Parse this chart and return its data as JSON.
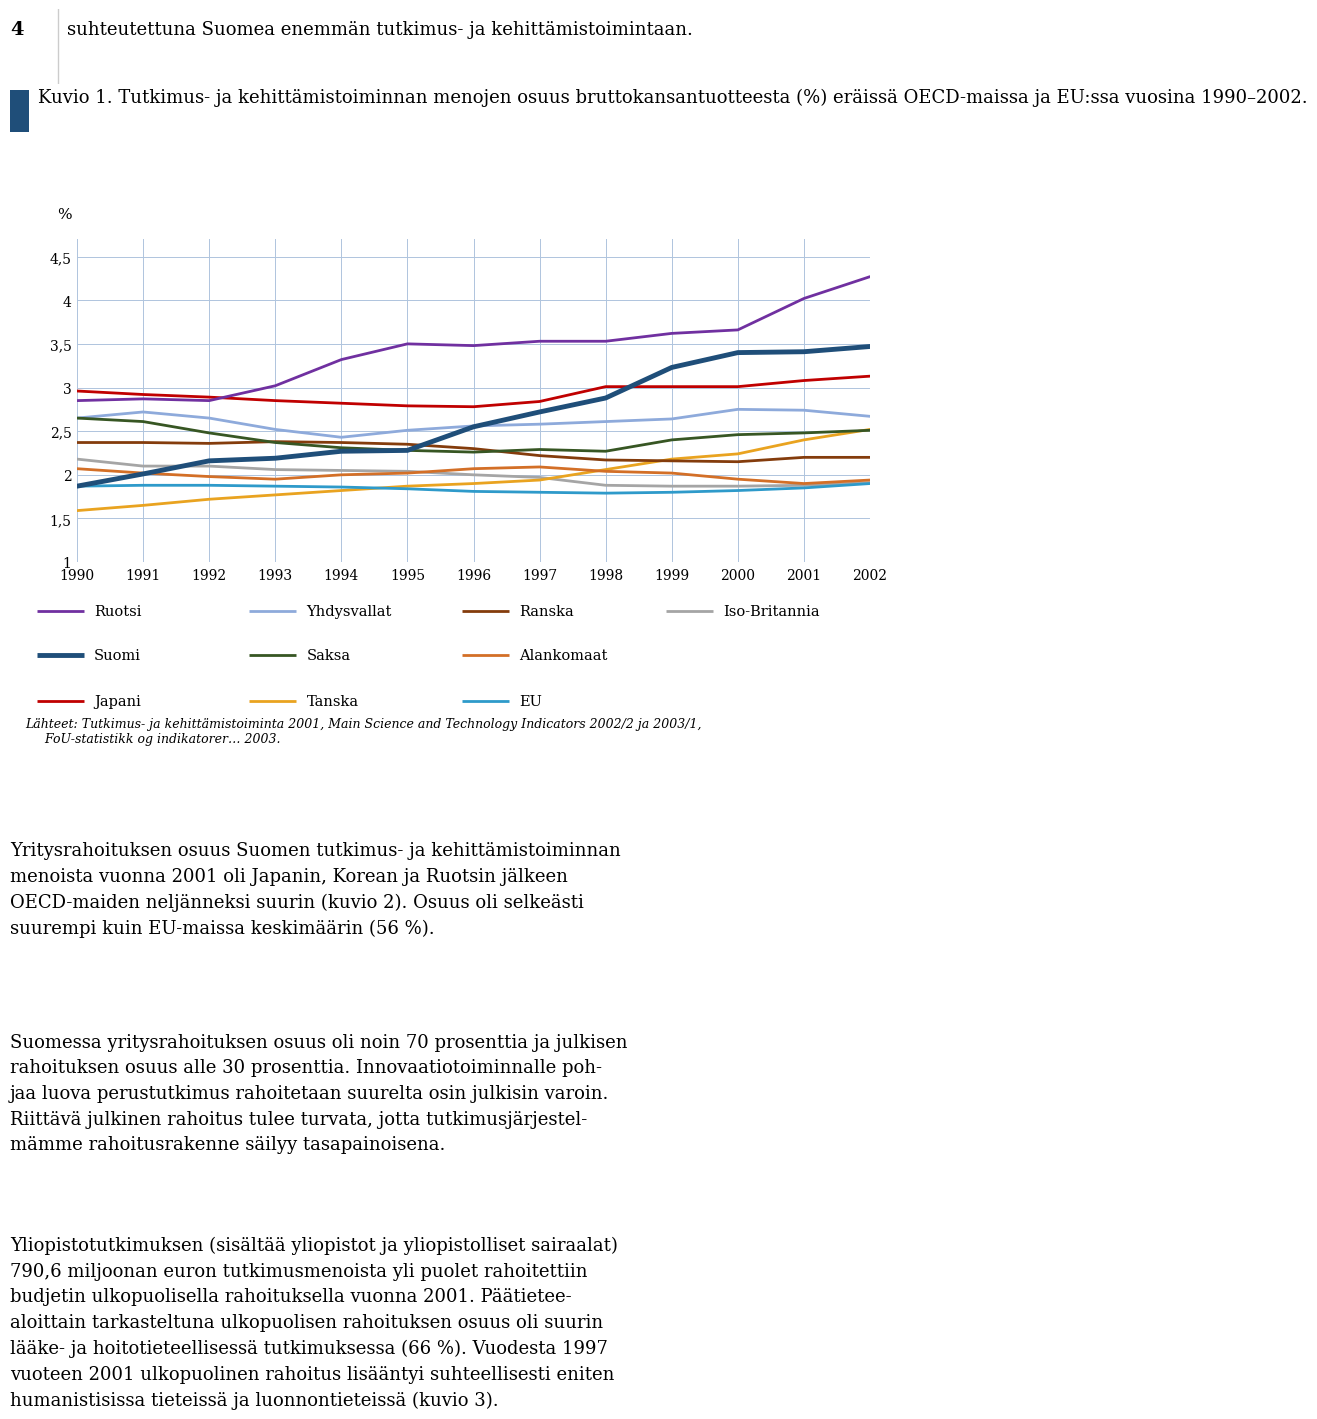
{
  "title_text": "Kuvio 1. Tutkimus- ja kehittämistoiminnan menojen osuus bruttokansantuotteesta (%) eräissä OECD-maissa ja EU:ssa vuosina 1990–2002.",
  "intro_text": "suhteutettuna Suomea enemmän tutkimus- ja kehittämistoimintaan.",
  "page_number": "4",
  "ylabel": "%",
  "ylim": [
    1.0,
    4.7
  ],
  "yticks": [
    1.0,
    1.5,
    2.0,
    2.5,
    3.0,
    3.5,
    4.0,
    4.5
  ],
  "xlim": [
    1990,
    2002
  ],
  "xticks": [
    1990,
    1991,
    1992,
    1993,
    1994,
    1995,
    1996,
    1997,
    1998,
    1999,
    2000,
    2001,
    2002
  ],
  "bg_color": "#d9e2f0",
  "plot_bg_color": "#ffffff",
  "grid_color": "#afc4dd",
  "years": [
    1990,
    1991,
    1992,
    1993,
    1994,
    1995,
    1996,
    1997,
    1998,
    1999,
    2000,
    2001,
    2002
  ],
  "series": {
    "Ruotsi": {
      "color": "#7030a0",
      "lw": 2.0,
      "data": [
        2.85,
        2.87,
        2.85,
        3.02,
        3.32,
        3.5,
        3.48,
        3.53,
        3.53,
        3.62,
        3.66,
        4.02,
        4.27
      ]
    },
    "Suomi": {
      "color": "#1f4e79",
      "lw": 3.5,
      "data": [
        1.87,
        2.01,
        2.16,
        2.19,
        2.27,
        2.28,
        2.55,
        2.72,
        2.88,
        3.23,
        3.4,
        3.41,
        3.47
      ]
    },
    "Japani": {
      "color": "#c00000",
      "lw": 2.0,
      "data": [
        2.96,
        2.92,
        2.89,
        2.85,
        2.82,
        2.79,
        2.78,
        2.84,
        3.01,
        3.01,
        3.01,
        3.08,
        3.13
      ]
    },
    "Yhdysvallat": {
      "color": "#8eaadb",
      "lw": 2.0,
      "data": [
        2.65,
        2.72,
        2.65,
        2.52,
        2.43,
        2.51,
        2.56,
        2.58,
        2.61,
        2.64,
        2.75,
        2.74,
        2.67
      ]
    },
    "Saksa": {
      "color": "#375623",
      "lw": 2.0,
      "data": [
        2.65,
        2.61,
        2.48,
        2.37,
        2.31,
        2.28,
        2.26,
        2.29,
        2.27,
        2.4,
        2.46,
        2.48,
        2.51
      ]
    },
    "Tanska": {
      "color": "#e9a320",
      "lw": 2.0,
      "data": [
        1.59,
        1.65,
        1.72,
        1.77,
        1.82,
        1.87,
        1.9,
        1.94,
        2.06,
        2.18,
        2.24,
        2.4,
        2.52
      ]
    },
    "Ranska": {
      "color": "#843c0c",
      "lw": 2.0,
      "data": [
        2.37,
        2.37,
        2.36,
        2.38,
        2.37,
        2.35,
        2.3,
        2.22,
        2.17,
        2.16,
        2.15,
        2.2,
        2.2
      ]
    },
    "Alankomaat": {
      "color": "#d36f27",
      "lw": 2.0,
      "data": [
        2.07,
        2.02,
        1.98,
        1.95,
        2.0,
        2.02,
        2.07,
        2.09,
        2.04,
        2.02,
        1.95,
        1.9,
        1.94
      ]
    },
    "EU": {
      "color": "#2e9aca",
      "lw": 2.0,
      "data": [
        1.87,
        1.88,
        1.88,
        1.87,
        1.86,
        1.84,
        1.81,
        1.8,
        1.79,
        1.8,
        1.82,
        1.85,
        1.9
      ]
    },
    "Iso-Britannia": {
      "color": "#a5a5a5",
      "lw": 2.0,
      "data": [
        2.18,
        2.1,
        2.1,
        2.06,
        2.05,
        2.04,
        2.0,
        1.97,
        1.88,
        1.87,
        1.87,
        1.88,
        1.91
      ]
    }
  },
  "legend_layout": [
    [
      "Ruotsi",
      "Yhdysvallat",
      "Ranska",
      "Iso-Britannia"
    ],
    [
      "Suomi",
      "Saksa",
      "Alankomaat",
      ""
    ],
    [
      "Japani",
      "Tanska",
      "EU",
      ""
    ]
  ],
  "source_line1": "Lähteet: Tutkimus- ja kehittämistoiminta 2001, Main Science and Technology Indicators 2002/2 ja 2003/1,",
  "source_line2": "     FoU-statistikk og indikatorer… 2003.",
  "body_text1": "Yritysrahoituksen osuus Suomen tutkimus- ja kehittämistoiminnan\nmenoista vuonna 2001 oli Japanin, Korean ja Ruotsin jälkeen\nOECD-maiden neljänneksi suurin (kuvio 2). Osuus oli selkeästi\nsuurempi kuin EU-maissa keskimäärin (56 %).",
  "body_text2": "Suomessa yritysrahoituksen osuus oli noin 70 prosenttia ja julkisen\nrahoituksen osuus alle 30 prosenttia. Innovaatiotoiminnalle poh-\njaa luova perustutkimus rahoitetaan suurelta osin julkisin varoin.\nRiittävä julkinen rahoitus tulee turvata, jotta tutkimusjärjestel-\nmämme rahoitusrakenne säilyy tasapainoisena.",
  "body_text3": "Yliopistotutkimuksen (sisältää yliopistot ja yliopistolliset sairaalat)\n790,6 miljoonan euron tutkimusmenoista yli puolet rahoitettiin\nbudjetin ulkopuolisella rahoituksella vuonna 2001. Päätietee-\naloittain tarkasteltuna ulkopuolisen rahoituksen osuus oli suurin\nlääke- ja hoitotieteellisessä tutkimuksessa (66 %). Vuodesta 1997\nvuoteen 2001 ulkopuolinen rahoitus lisääntyi suhteellisesti eniten\nhumanistisissa tieteissä ja luonnontieteissä (kuvio 3).",
  "title_indicator_color": "#1f4e79",
  "page_bg": "#ffffff",
  "text_color": "#000000"
}
